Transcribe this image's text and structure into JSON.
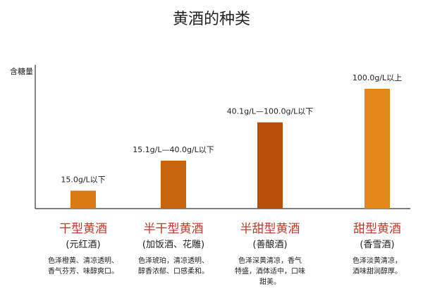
{
  "chart_data": {
    "type": "bar",
    "title": "黄酒的种类",
    "ylabel": "含糖量",
    "ylim": [
      0,
      120
    ],
    "grid": false,
    "categories": [
      {
        "name": "干型黄酒",
        "alias": "(元红酒)",
        "range_label": "15.0g/L以下",
        "value": 15,
        "color": "#d87914",
        "desc": [
          "色泽橙黄、清凉透明、",
          "香气芬芳、味醇爽口。"
        ]
      },
      {
        "name": "半干型黄酒",
        "alias": "(加饭酒、花雕)",
        "range_label": "15.1g/L—40.0g/L以下",
        "value": 40,
        "color": "#c8640e",
        "desc": [
          "色泽琥珀，清凉透明、",
          "醇香浓郁、口感柔和。"
        ]
      },
      {
        "name": "半甜型黄酒",
        "alias": "(善酿酒)",
        "range_label": "40.1g/L—100.0g/L以下",
        "value": 72,
        "color": "#b74f0b",
        "desc": [
          "色泽深黄清凉，香气",
          "特盛，酒体适中，口味",
          "甜美。"
        ]
      },
      {
        "name": "甜型黄酒",
        "alias": "(香雪酒)",
        "range_label": "100.0g/L以上",
        "value": 100,
        "color": "#e38718",
        "desc": [
          "色泽淡黄清凉，",
          "酒味甜润醇厚。"
        ]
      }
    ]
  },
  "colors": {
    "name_text": "#c0392b",
    "axis": "#333333",
    "body_text": "#222222"
  }
}
